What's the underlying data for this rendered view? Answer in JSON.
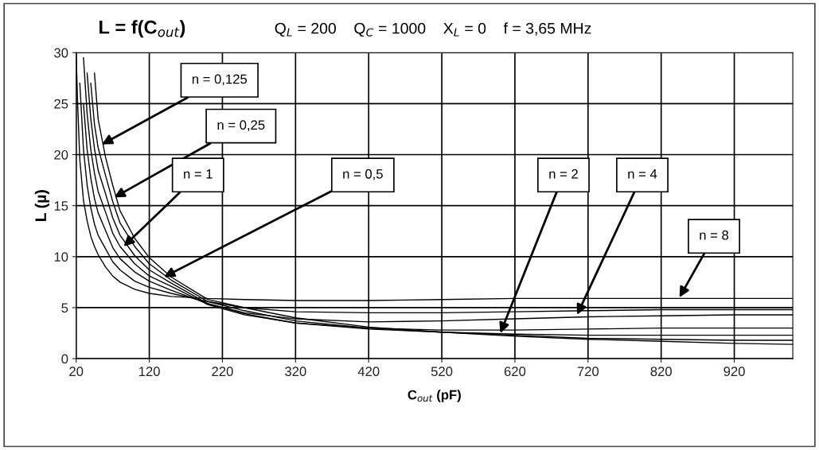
{
  "chart_data": {
    "type": "line",
    "title": "L = f(C$_{out}$)",
    "subtitle": "Q$_{L}$ = 200    Q$_{C}$ = 1000    X$_{L}$ = 0    f = 3,65 MHz",
    "xlabel": "C$_{out}$ (pF)",
    "ylabel": "L (µ)",
    "x": [
      20,
      22,
      25,
      30,
      35,
      40,
      45,
      50,
      60,
      70,
      80,
      100,
      120,
      150,
      200,
      250,
      320,
      420,
      520,
      620,
      720,
      820,
      920,
      1000
    ],
    "series": [
      {
        "color": "#000000",
        "values": [
          30,
          25,
          19.5,
          15.5,
          13.5,
          12,
          11,
          10.2,
          9.0,
          8.1,
          7.5,
          6.8,
          6.4,
          6.1,
          5.9,
          5.8,
          5.7,
          5.7,
          5.8,
          5.9,
          5.9,
          5.9,
          5.9,
          5.9
        ]
      },
      {
        "color": "#000000",
        "values": [
          null,
          null,
          27,
          20.5,
          17,
          14.8,
          13.2,
          12.1,
          10.8,
          9.5,
          8.7,
          7.6,
          7.0,
          6.4,
          5.6,
          5.0,
          4.6,
          4.5,
          4.5,
          4.6,
          4.7,
          4.8,
          4.8,
          4.8
        ]
      },
      {
        "color": "#000000",
        "values": [
          null,
          null,
          null,
          25,
          20.5,
          17.7,
          15.7,
          14.3,
          12.6,
          10.9,
          9.8,
          8.5,
          7.6,
          6.7,
          5.4,
          4.5,
          3.9,
          3.6,
          3.7,
          3.9,
          4.1,
          4.2,
          4.3,
          4.3
        ]
      },
      {
        "color": "#000000",
        "values": [
          null,
          null,
          null,
          29.5,
          24,
          20.5,
          18.2,
          16.4,
          14.4,
          12.3,
          11,
          9.3,
          8.1,
          7.1,
          5.3,
          4.3,
          3.5,
          3.0,
          2.8,
          2.8,
          2.9,
          3.0,
          3.0,
          3.0
        ]
      },
      {
        "color": "#000000",
        "values": [
          null,
          null,
          null,
          null,
          28,
          23.5,
          20.6,
          18.5,
          16.2,
          13.8,
          12.1,
          10.1,
          8.7,
          7.4,
          5.4,
          4.4,
          3.5,
          2.9,
          2.6,
          2.4,
          2.3,
          2.3,
          2.3,
          2.3
        ]
      },
      {
        "color": "#000000",
        "values": [
          null,
          null,
          null,
          null,
          null,
          27,
          23,
          20.7,
          18,
          15.4,
          13.3,
          11,
          9.3,
          7.7,
          5.6,
          4.7,
          3.7,
          3.0,
          2.6,
          2.3,
          2.0,
          1.9,
          1.8,
          1.8
        ]
      },
      {
        "color": "#000000",
        "values": [
          null,
          null,
          null,
          null,
          null,
          null,
          28,
          23.5,
          19.8,
          17,
          14.5,
          11.8,
          9.9,
          8.0,
          5.8,
          5.0,
          4.0,
          3.1,
          2.6,
          2.2,
          1.9,
          1.7,
          1.5,
          1.4
        ]
      }
    ],
    "annotations": [
      {
        "text": "n = 0,125",
        "x": 55,
        "y": 21
      },
      {
        "text": "n = 0,25",
        "x": 72,
        "y": 15.8
      },
      {
        "text": "n = 1",
        "x": 85,
        "y": 11
      },
      {
        "text": "n = 0,5",
        "x": 140,
        "y": 8
      },
      {
        "text": "n = 2",
        "x": 600,
        "y": 2.5
      },
      {
        "text": "n = 4",
        "x": 705,
        "y": 4.3
      },
      {
        "text": "n = 8",
        "x": 845,
        "y": 6
      }
    ],
    "xlim": [
      20,
      1000
    ],
    "ylim": [
      0,
      30
    ],
    "xticks": [
      20,
      120,
      220,
      320,
      420,
      520,
      620,
      720,
      820,
      920
    ],
    "yticks": [
      0,
      5,
      10,
      15,
      20,
      25,
      30
    ],
    "grid": true,
    "legend": false,
    "marker": "none",
    "line_style": "solid"
  }
}
